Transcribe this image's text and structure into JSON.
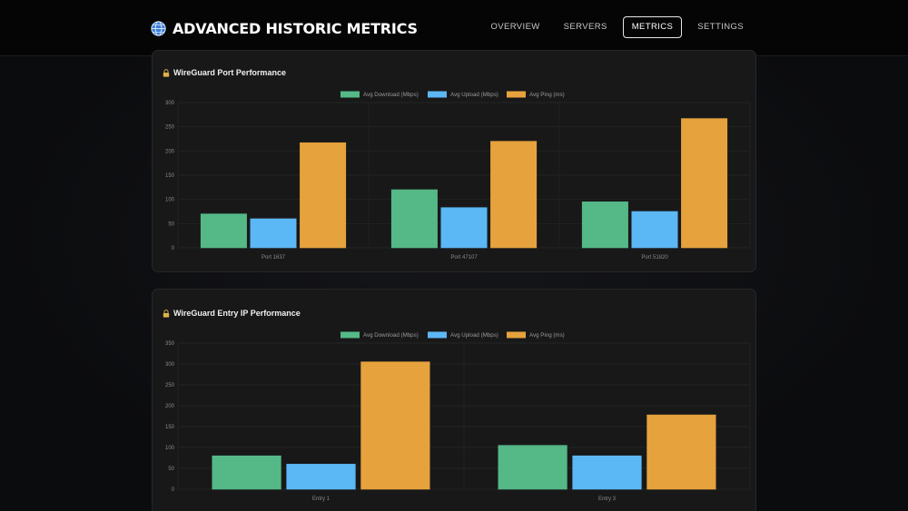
{
  "header": {
    "title": "ADVANCED HISTORIC METRICS",
    "nav": [
      "OVERVIEW",
      "SERVERS",
      "METRICS",
      "SETTINGS"
    ],
    "active": "METRICS"
  },
  "colors": {
    "download": "#55b887",
    "upload": "#5cb7f5",
    "ping": "#e6a23c"
  },
  "chart_data": [
    {
      "type": "bar",
      "title": "WireGuard Port Performance",
      "categories": [
        "Port 1637",
        "Port 47107",
        "Port 51820"
      ],
      "series": [
        {
          "name": "Avg Download (Mbps)",
          "values": [
            70,
            120,
            95
          ]
        },
        {
          "name": "Avg Upload (Mbps)",
          "values": [
            60,
            83,
            75
          ]
        },
        {
          "name": "Avg Ping (ms)",
          "values": [
            217,
            220,
            267
          ]
        }
      ],
      "ylim": [
        0,
        300
      ],
      "yticks": [
        0,
        50,
        100,
        150,
        200,
        250,
        300
      ],
      "legend": "top"
    },
    {
      "type": "bar",
      "title": "WireGuard Entry IP Performance",
      "categories": [
        "Entry 1",
        "Entry 3"
      ],
      "series": [
        {
          "name": "Avg Download (Mbps)",
          "values": [
            80,
            105
          ]
        },
        {
          "name": "Avg Upload (Mbps)",
          "values": [
            60,
            80
          ]
        },
        {
          "name": "Avg Ping (ms)",
          "values": [
            305,
            178
          ]
        }
      ],
      "ylim": [
        0,
        350
      ],
      "yticks": [
        0,
        50,
        100,
        150,
        200,
        250,
        300,
        350
      ],
      "legend": "top"
    }
  ]
}
